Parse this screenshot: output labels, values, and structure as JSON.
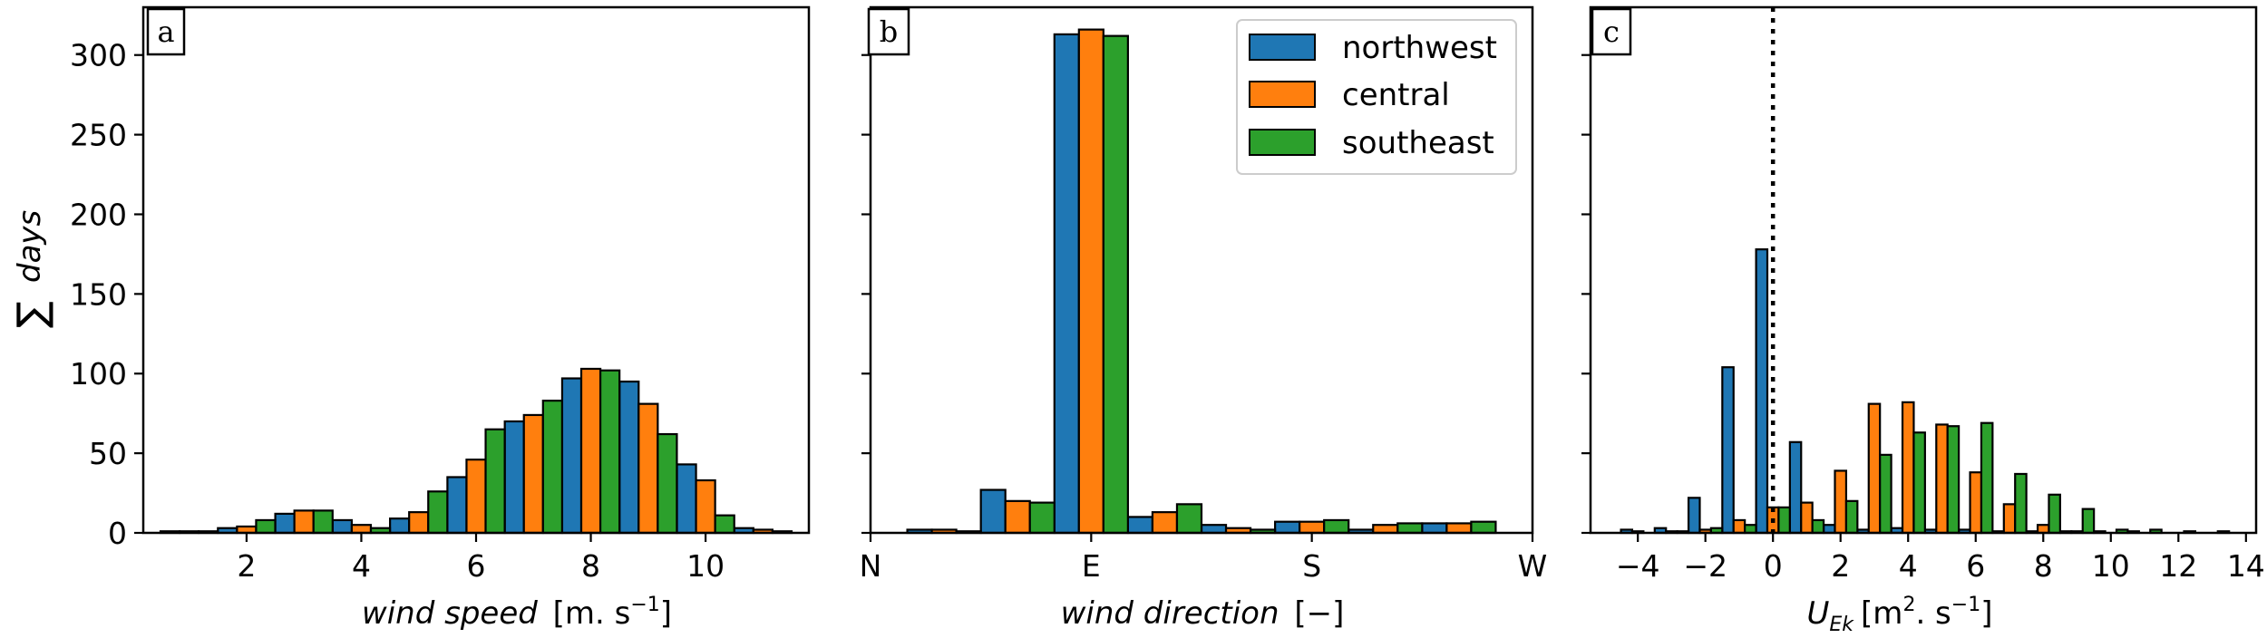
{
  "ylabel_symbol": "∑",
  "ylabel_text": "days",
  "legend": {
    "entries": [
      {
        "name": "northwest",
        "color": "#1f77b4"
      },
      {
        "name": "central",
        "color": "#ff7f0e"
      },
      {
        "name": "southeast",
        "color": "#2ca02c"
      }
    ]
  },
  "chart_data": [
    {
      "panel": "a",
      "type": "bar",
      "xlabel": "wind speed [m. s⁻¹]",
      "xlabel_main": "wind speed",
      "xlabel_unit": "[m. s",
      "xlabel_sup": "−1",
      "xlabel_close": "]",
      "xlim": [
        0.2,
        11.8
      ],
      "ylim": [
        0,
        330
      ],
      "xticks": [
        2,
        4,
        6,
        8,
        10
      ],
      "yticks": [
        0,
        50,
        100,
        150,
        200,
        250,
        300
      ],
      "bar_width": 0.333,
      "x": [
        1,
        2,
        3,
        4,
        5,
        6,
        7,
        8,
        9,
        10,
        11
      ],
      "series": [
        {
          "name": "northwest",
          "values": [
            1,
            3,
            12,
            8,
            9,
            35,
            70,
            97,
            95,
            43,
            3
          ]
        },
        {
          "name": "central",
          "values": [
            1,
            4,
            14,
            5,
            13,
            46,
            74,
            103,
            81,
            33,
            2
          ]
        },
        {
          "name": "southeast",
          "values": [
            1,
            8,
            14,
            3,
            26,
            65,
            83,
            102,
            62,
            11,
            1
          ]
        }
      ]
    },
    {
      "panel": "b",
      "type": "bar",
      "xlabel": "wind direction [−]",
      "xlabel_main": "wind direction",
      "xlabel_unit": "[−]",
      "xlim": [
        0,
        360
      ],
      "ylim": [
        0,
        330
      ],
      "xtick_positions": [
        0,
        120,
        240,
        360
      ],
      "xtick_labels": [
        "N",
        "E",
        "S",
        "W"
      ],
      "bar_width": 13.33,
      "x": [
        40,
        80,
        120,
        160,
        200,
        240,
        280,
        320
      ],
      "series": [
        {
          "name": "northwest",
          "values": [
            2,
            27,
            313,
            10,
            5,
            7,
            2,
            6
          ]
        },
        {
          "name": "central",
          "values": [
            2,
            20,
            316,
            13,
            3,
            7,
            5,
            6
          ]
        },
        {
          "name": "southeast",
          "values": [
            1,
            19,
            312,
            18,
            2,
            8,
            6,
            7
          ]
        }
      ]
    },
    {
      "panel": "c",
      "type": "bar",
      "xlabel": "U_Ek [m². s⁻¹]",
      "xlabel_main": "U",
      "xlabel_sub": "Ek",
      "xlabel_unit": "[m",
      "xlabel_sup1": "2",
      "xlabel_mid": ". s",
      "xlabel_sup2": "−1",
      "xlabel_close": "]",
      "xlim": [
        -5.4,
        14.3
      ],
      "ylim": [
        0,
        330
      ],
      "xticks": [
        -4,
        -2,
        0,
        2,
        4,
        6,
        8,
        10,
        12,
        14
      ],
      "xtick_labels": [
        "−4",
        "−2",
        "0",
        "2",
        "4",
        "6",
        "8",
        "10",
        "12",
        "14"
      ],
      "zero_line": 0,
      "bar_width": 0.333,
      "x": [
        -4,
        -3,
        -2,
        -1,
        0,
        1,
        2,
        3,
        4,
        5,
        6,
        7,
        8,
        9,
        10,
        11,
        12,
        13
      ],
      "series": [
        {
          "name": "northwest",
          "values": [
            2,
            3,
            22,
            104,
            178,
            57,
            5,
            2,
            3,
            2,
            2,
            1,
            1,
            1,
            1,
            1,
            0,
            0
          ]
        },
        {
          "name": "central",
          "values": [
            1,
            1,
            2,
            8,
            16,
            19,
            39,
            81,
            82,
            68,
            38,
            18,
            5,
            1,
            0,
            0,
            0,
            0
          ]
        },
        {
          "name": "southeast",
          "values": [
            0,
            1,
            3,
            5,
            16,
            8,
            20,
            49,
            63,
            67,
            69,
            37,
            24,
            15,
            2,
            2,
            1,
            1
          ]
        }
      ]
    }
  ]
}
